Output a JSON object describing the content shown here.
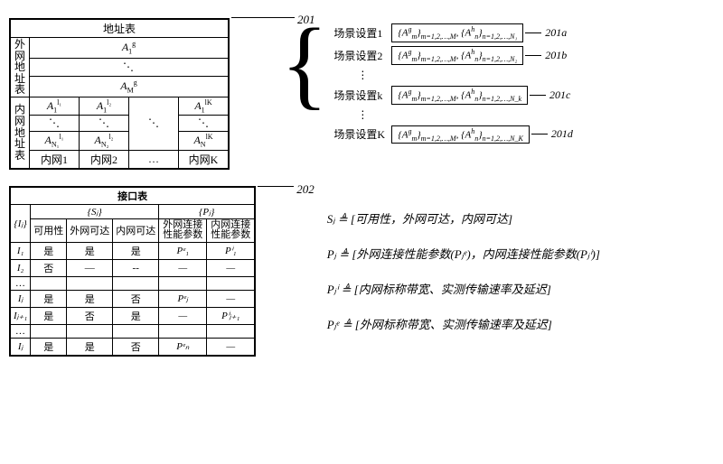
{
  "labels": {
    "p201": "201",
    "p201a": "201a",
    "p201b": "201b",
    "p201c": "201c",
    "p201d": "201d",
    "p202": "202"
  },
  "addr": {
    "title": "地址表",
    "ext_hdr": "外网地址表",
    "int_hdr": "内网地址表",
    "Ag1": "A",
    "Ag1_sub": "1",
    "Ag1_sup": "g",
    "AgM": "A",
    "AgM_sub": "M",
    "AgM_sup": "g",
    "diag": "⋱",
    "vdots": "⋮",
    "Ah11": "A",
    "Ah11_sub": "1",
    "Ah11_sup": "l₁",
    "Ah12": "A",
    "Ah12_sub": "1",
    "Ah12_sup": "l₂",
    "Ah1K": "A",
    "Ah1K_sub": "1",
    "Ah1K_sup": "lK",
    "AhN1": "A",
    "AhN1_sub": "N₁",
    "AhN1_sup": "l₁",
    "AhN2": "A",
    "AhN2_sub": "N₂",
    "AhN2_sup": "l₂",
    "AhNK": "A",
    "AhNK_sub": "N",
    "AhNK_sup": "lK",
    "col1": "内网1",
    "col2": "内网2",
    "coldots": "…",
    "colK": "内网K"
  },
  "scenes": {
    "s1": "场景设置1",
    "s2": "场景设置2",
    "sk": "场景设置k",
    "sK": "场景设置K",
    "box_prefix": "{A",
    "box_g_sup": "g",
    "box_m_sub": "m",
    "box_mrange": "m=1,2,…,M",
    "box_h_sup": "h",
    "box_n_sub": "n",
    "box_n1": "n=1,2,…,N₁",
    "box_n2": "n=1,2,…,N₂",
    "box_nk": "n=1,2,…,N_k",
    "box_nK": "n=1,2,…,N_K",
    "vdots": "⋮"
  },
  "iface": {
    "title": "接口表",
    "Ij_hdr": "{Iⱼ}",
    "Sj_hdr": "{Sⱼ}",
    "Pj_hdr": "{Pⱼ}",
    "col_avail": "可用性",
    "col_ext": "外网可达",
    "col_int": "内网可达",
    "col_pe": "外网连接性能参数",
    "col_pi": "内网连接性能参数",
    "rows": [
      {
        "id": "I₁",
        "a": "是",
        "b": "是",
        "c": "是",
        "pe": "Pᵉ₁",
        "pi": "Pⁱ₁"
      },
      {
        "id": "I₂",
        "a": "否",
        "b": "—",
        "c": "--",
        "pe": "—",
        "pi": "—"
      },
      {
        "id": "…",
        "a": "",
        "b": "",
        "c": "",
        "pe": "",
        "pi": ""
      },
      {
        "id": "Iⱼ",
        "a": "是",
        "b": "是",
        "c": "否",
        "pe": "Pᵉⱼ",
        "pi": "—"
      },
      {
        "id": "Iⱼ₊₁",
        "a": "是",
        "b": "否",
        "c": "是",
        "pe": "—",
        "pi": "Pⁱⱼ₊₁"
      },
      {
        "id": "…",
        "a": "",
        "b": "",
        "c": "",
        "pe": "",
        "pi": ""
      },
      {
        "id": "Iⱼ",
        "a": "是",
        "b": "是",
        "c": "否",
        "pe": "Pᵉₙ",
        "pi": "—"
      }
    ]
  },
  "defs": {
    "Sj": "Sⱼ ≜ [可用性，外网可达，内网可达]",
    "Pj": "Pⱼ ≜ [外网连接性能参数(Pⱼᵉ)，内网连接性能参数(Pⱼⁱ)]",
    "Pji": "Pⱼⁱ ≜ [内网标称带宽、实测传输速率及延迟]",
    "Pje": "Pⱼᵉ ≜ [外网标称带宽、实测传输速率及延迟]"
  },
  "style": {
    "border_color": "#000000",
    "bg": "#ffffff",
    "font_main": "SimSun, serif",
    "fontsize_body": 12,
    "fontsize_small": 11,
    "fontsize_tiny": 9
  }
}
